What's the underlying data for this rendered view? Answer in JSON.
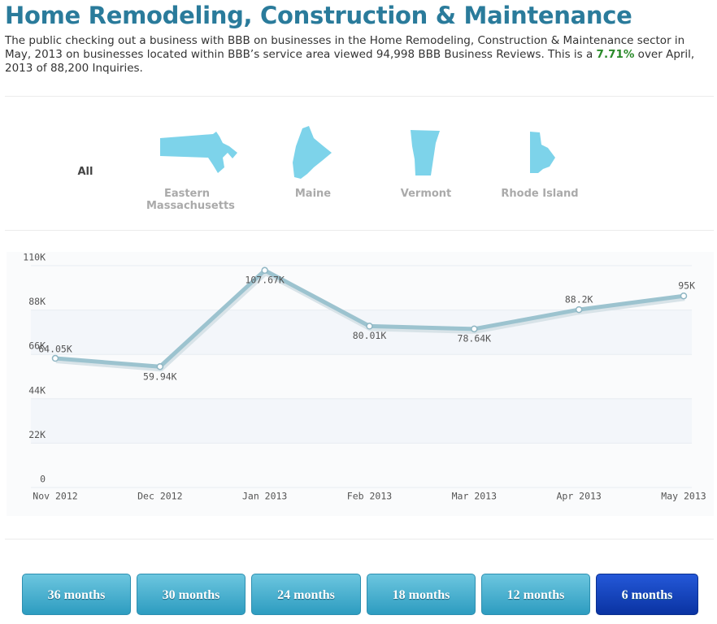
{
  "header": {
    "title": "Home Remodeling, Construction & Maintenance",
    "description": [
      "The public checking out a business with BBB on businesses in the Home Remodeling, Construction & Maintenance sector in May, 2013 on businesses located within BBB’s service area viewed 94,998 BBB Business Reviews. This is a ",
      "7.71%",
      " over April, 2013 of 88,200 Inquiries."
    ]
  },
  "regions": [
    "All",
    "Eastern Massachusetts",
    "Maine",
    "Vermont",
    "Rhode Island"
  ],
  "chart_data": {
    "type": "line",
    "categories": [
      "Nov 2012",
      "Dec 2012",
      "Jan 2013",
      "Feb 2013",
      "Mar 2013",
      "Apr 2013",
      "May 2013"
    ],
    "series": [
      {
        "color": "#9cc3cf",
        "values": [
          64050,
          59940,
          107670,
          80010,
          78640,
          88200,
          95000
        ],
        "value_labels": [
          "64.05K",
          "59.94K",
          "107.67K",
          "80.01K",
          "78.64K",
          "88.2K",
          "95K"
        ]
      }
    ],
    "ylim": [
      0,
      110000
    ],
    "yticks": [
      0,
      {
        "value": 22000,
        "label": "22K"
      },
      {
        "value": 44000,
        "label": "44K"
      },
      {
        "value": 66000,
        "label": "66K"
      },
      {
        "value": 88000,
        "label": "88K"
      },
      {
        "value": 110000,
        "label": "110K"
      }
    ],
    "grid": true
  },
  "buttons": [
    "36 months",
    "30 months",
    "24 months",
    "18 months",
    "12 months",
    "6 months"
  ]
}
